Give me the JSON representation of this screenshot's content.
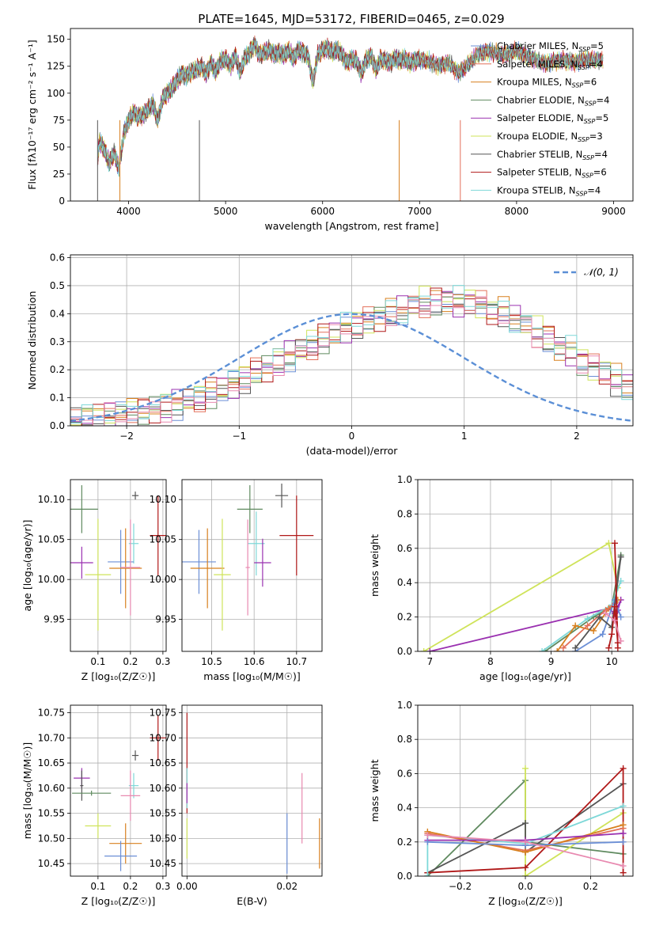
{
  "page": {
    "title": "PLATE=1645, MJD=53172, FIBERID=0465, z=0.029"
  },
  "colors": {
    "chabrier_miles": "#6b8fd6",
    "salpeter_miles": "#e3705a",
    "kroupa_miles": "#d8801f",
    "chabrier_elodie": "#5f8a5f",
    "salpeter_elodie": "#9a30b0",
    "kroupa_elodie": "#cfe35a",
    "chabrier_stelib": "#555555",
    "salpeter_stelib": "#b01818",
    "kroupa_stelib": "#7ed8d8",
    "pink": "#e889b0",
    "normal": "#5b8fd6",
    "grid": "#b0b0b0"
  },
  "chart_data": [
    {
      "id": "spectrum",
      "type": "line",
      "title": "PLATE=1645, MJD=53172, FIBERID=0465, z=0.029",
      "xlabel": "wavelength [Angstrom, rest frame]",
      "ylabel": "Flux [fλ10⁻¹⁷ erg cm⁻² s⁻¹ A⁻¹]",
      "xlim": [
        3400,
        9200
      ],
      "ylim": [
        0,
        160
      ],
      "xticks": [
        4000,
        5000,
        6000,
        7000,
        8000,
        9000
      ],
      "yticks": [
        0,
        25,
        50,
        75,
        100,
        125,
        150
      ],
      "grid": false,
      "legend_position": "top-right",
      "legend": [
        {
          "label": "Chabrier MILES, N",
          "sub": "SSP",
          "tail": "=5",
          "color_key": "chabrier_miles"
        },
        {
          "label": "Salpeter MILES, N",
          "sub": "SSP",
          "tail": "=4",
          "color_key": "salpeter_miles"
        },
        {
          "label": "Kroupa MILES, N",
          "sub": "SSP",
          "tail": "=6",
          "color_key": "kroupa_miles"
        },
        {
          "label": "Chabrier ELODIE, N",
          "sub": "SSP",
          "tail": "=4",
          "color_key": "chabrier_elodie"
        },
        {
          "label": "Salpeter ELODIE, N",
          "sub": "SSP",
          "tail": "=5",
          "color_key": "salpeter_elodie"
        },
        {
          "label": "Kroupa ELODIE, N",
          "sub": "SSP",
          "tail": "=3",
          "color_key": "kroupa_elodie"
        },
        {
          "label": "Chabrier STELIB, N",
          "sub": "SSP",
          "tail": "=4",
          "color_key": "chabrier_stelib"
        },
        {
          "label": "Salpeter STELIB, N",
          "sub": "SSP",
          "tail": "=6",
          "color_key": "salpeter_stelib"
        },
        {
          "label": "Kroupa STELIB, N",
          "sub": "SSP",
          "tail": "=4",
          "color_key": "kroupa_stelib"
        }
      ],
      "x": [
        3680,
        3700,
        3750,
        3800,
        3850,
        3900,
        3950,
        4000,
        4050,
        4100,
        4150,
        4200,
        4250,
        4300,
        4350,
        4400,
        4450,
        4500,
        4550,
        4600,
        4650,
        4700,
        4750,
        4800,
        4850,
        4900,
        4950,
        5000,
        5050,
        5100,
        5150,
        5200,
        5250,
        5300,
        5350,
        5400,
        5450,
        5500,
        5550,
        5600,
        5650,
        5700,
        5750,
        5800,
        5850,
        5900,
        5950,
        6000,
        6050,
        6100,
        6150,
        6200,
        6250,
        6300,
        6350,
        6400,
        6450,
        6500,
        6550,
        6600,
        6650,
        6700,
        6750,
        6800,
        6850,
        6900,
        6950,
        7000,
        7100,
        7200,
        7300,
        7400,
        7500,
        7600,
        7700,
        7800,
        7900,
        8000,
        8100,
        8200,
        8300,
        8400,
        8500,
        8600,
        8700,
        8800,
        8900
      ],
      "flux": [
        40,
        55,
        48,
        35,
        45,
        30,
        62,
        75,
        82,
        78,
        80,
        85,
        90,
        75,
        95,
        100,
        105,
        112,
        118,
        116,
        120,
        122,
        125,
        118,
        128,
        120,
        130,
        132,
        125,
        135,
        120,
        133,
        138,
        145,
        135,
        138,
        140,
        136,
        138,
        135,
        140,
        132,
        140,
        138,
        134,
        110,
        136,
        140,
        142,
        138,
        140,
        136,
        128,
        132,
        130,
        118,
        132,
        134,
        122,
        132,
        130,
        128,
        133,
        130,
        132,
        128,
        130,
        132,
        130,
        125,
        128,
        118,
        126,
        135,
        138,
        137,
        136,
        140,
        135,
        132,
        128,
        130,
        130,
        128,
        131,
        130,
        130
      ],
      "dropouts": [
        {
          "x": 3680,
          "color_key": "chabrier_stelib"
        },
        {
          "x": 3910,
          "color_key": "kroupa_miles"
        },
        {
          "x": 4730,
          "color_key": "chabrier_stelib"
        },
        {
          "x": 6790,
          "color_key": "kroupa_miles"
        },
        {
          "x": 7420,
          "color_key": "salpeter_miles"
        }
      ]
    },
    {
      "id": "residuals",
      "type": "line",
      "xlabel": "(data-model)/error",
      "ylabel": "Normed distribution",
      "xlim": [
        -2.5,
        2.5
      ],
      "ylim": [
        0,
        0.61
      ],
      "xticks": [
        -2,
        -1,
        0,
        1,
        2
      ],
      "yticks": [
        0.0,
        0.1,
        0.2,
        0.3,
        0.4,
        0.5,
        0.6
      ],
      "grid": true,
      "legend_position": "top-right",
      "legend_label": "𝒩(0, 1)",
      "bin_width": 0.1,
      "series_base": [
        0.02,
        0.03,
        0.03,
        0.04,
        0.04,
        0.05,
        0.05,
        0.06,
        0.07,
        0.08,
        0.09,
        0.1,
        0.12,
        0.13,
        0.15,
        0.17,
        0.19,
        0.21,
        0.23,
        0.25,
        0.27,
        0.29,
        0.31,
        0.33,
        0.35,
        0.36,
        0.37,
        0.39,
        0.4,
        0.41,
        0.43,
        0.44,
        0.44,
        0.45,
        0.44,
        0.44,
        0.43,
        0.41,
        0.4,
        0.38,
        0.36,
        0.33,
        0.31,
        0.28,
        0.26,
        0.23,
        0.21,
        0.19,
        0.16,
        0.14,
        0.12
      ]
    },
    {
      "id": "age_vs_Z",
      "type": "scatter",
      "xlabel": "Z [log₁₀(Z/Z☉)]",
      "ylabel": "age  [log₁₀(age/yr)]",
      "xlim": [
        0.015,
        0.31
      ],
      "ylim": [
        9.91,
        10.125
      ],
      "xticks": [
        0.1,
        0.2,
        0.3
      ],
      "yticks": [
        9.95,
        10.0,
        10.05,
        10.1
      ],
      "grid": true,
      "points": [
        {
          "x": 0.05,
          "y": 10.088,
          "xerr": 0.05,
          "yerr": 0.03,
          "color_key": "chabrier_elodie"
        },
        {
          "x": 0.215,
          "y": 10.105,
          "xerr": 0.01,
          "yerr": 0.005,
          "color_key": "chabrier_stelib"
        },
        {
          "x": 0.285,
          "y": 10.055,
          "xerr": 0.025,
          "yerr": 0.05,
          "color_key": "salpeter_stelib"
        },
        {
          "x": 0.21,
          "y": 10.045,
          "xerr": 0.015,
          "yerr": 0.025,
          "color_key": "kroupa_stelib"
        },
        {
          "x": 0.05,
          "y": 10.021,
          "xerr": 0.035,
          "yerr": 0.02,
          "color_key": "salpeter_elodie"
        },
        {
          "x": 0.17,
          "y": 10.022,
          "xerr": 0.04,
          "yerr": 0.04,
          "color_key": "chabrier_miles"
        },
        {
          "x": 0.185,
          "y": 10.014,
          "xerr": 0.05,
          "yerr": 0.05,
          "color_key": "kroupa_miles"
        },
        {
          "x": 0.2,
          "y": 10.015,
          "xerr": 0.03,
          "yerr": 0.06,
          "color_key": "pink"
        },
        {
          "x": 0.1,
          "y": 10.006,
          "xerr": 0.04,
          "yerr": 0.07,
          "color_key": "kroupa_elodie"
        }
      ]
    },
    {
      "id": "age_vs_mass",
      "type": "scatter",
      "xlabel": "mass [log₁₀(M/M☉)]",
      "ylabel": "",
      "xlim": [
        10.43,
        10.76
      ],
      "ylim": [
        9.91,
        10.125
      ],
      "xticks": [
        10.5,
        10.6,
        10.7
      ],
      "yticks": [
        9.95,
        10.0,
        10.05,
        10.1
      ],
      "grid": true,
      "points": [
        {
          "x": 10.59,
          "y": 10.088,
          "xerr": 0.03,
          "yerr": 0.03,
          "color_key": "chabrier_elodie"
        },
        {
          "x": 10.665,
          "y": 10.105,
          "xerr": 0.015,
          "yerr": 0.015,
          "color_key": "chabrier_stelib"
        },
        {
          "x": 10.7,
          "y": 10.055,
          "xerr": 0.04,
          "yerr": 0.05,
          "color_key": "salpeter_stelib"
        },
        {
          "x": 10.605,
          "y": 10.045,
          "xerr": 0.02,
          "yerr": 0.04,
          "color_key": "kroupa_stelib"
        },
        {
          "x": 10.62,
          "y": 10.021,
          "xerr": 0.02,
          "yerr": 0.03,
          "color_key": "salpeter_elodie"
        },
        {
          "x": 10.47,
          "y": 10.022,
          "xerr": 0.04,
          "yerr": 0.04,
          "color_key": "chabrier_miles"
        },
        {
          "x": 10.49,
          "y": 10.014,
          "xerr": 0.04,
          "yerr": 0.05,
          "color_key": "kroupa_miles"
        },
        {
          "x": 10.585,
          "y": 10.015,
          "xerr": 0.005,
          "yerr": 0.06,
          "color_key": "pink"
        },
        {
          "x": 10.525,
          "y": 10.006,
          "xerr": 0.02,
          "yerr": 0.07,
          "color_key": "kroupa_elodie"
        }
      ]
    },
    {
      "id": "weight_vs_age",
      "type": "line",
      "xlabel": "age  [log₁₀(age/yr)]",
      "ylabel": "mass weight",
      "xlim": [
        6.8,
        10.35
      ],
      "ylim": [
        0,
        1.0
      ],
      "xticks": [
        7,
        8,
        9,
        10
      ],
      "yticks": [
        0.0,
        0.2,
        0.4,
        0.6,
        0.8,
        1.0
      ],
      "grid": true,
      "series": [
        {
          "color_key": "kroupa_elodie",
          "x": [
            6.9,
            9.95,
            10.1
          ],
          "y": [
            0.0,
            0.63,
            0.37
          ]
        },
        {
          "color_key": "salpeter_elodie",
          "x": [
            7.0,
            9.95,
            10.05,
            10.15,
            10.1
          ],
          "y": [
            0.0,
            0.25,
            0.22,
            0.3,
            0.24
          ]
        },
        {
          "color_key": "chabrier_elodie",
          "x": [
            8.9,
            9.7,
            10.0,
            10.15
          ],
          "y": [
            0.0,
            0.2,
            0.26,
            0.56
          ]
        },
        {
          "color_key": "kroupa_stelib",
          "x": [
            8.85,
            9.6,
            10.0,
            10.15
          ],
          "y": [
            0.0,
            0.19,
            0.27,
            0.41
          ]
        },
        {
          "color_key": "kroupa_miles",
          "x": [
            9.1,
            9.4,
            9.7,
            9.95,
            10.1
          ],
          "y": [
            0.0,
            0.15,
            0.12,
            0.25,
            0.3
          ]
        },
        {
          "color_key": "salpeter_miles",
          "x": [
            9.2,
            9.6,
            9.9,
            10.05
          ],
          "y": [
            0.02,
            0.15,
            0.24,
            0.28
          ]
        },
        {
          "color_key": "chabrier_miles",
          "x": [
            9.4,
            9.85,
            10.05,
            10.15
          ],
          "y": [
            0.0,
            0.1,
            0.3,
            0.2
          ]
        },
        {
          "color_key": "chabrier_stelib",
          "x": [
            9.4,
            9.8,
            10.0,
            10.15
          ],
          "y": [
            0.02,
            0.2,
            0.14,
            0.55
          ]
        },
        {
          "color_key": "salpeter_stelib",
          "x": [
            9.95,
            10.0,
            10.05,
            10.1,
            10.05,
            10.1
          ],
          "y": [
            0.02,
            0.1,
            0.26,
            0.05,
            0.63,
            0.02
          ]
        },
        {
          "color_key": "pink",
          "x": [
            9.9,
            10.05,
            10.15
          ],
          "y": [
            0.22,
            0.18,
            0.06
          ]
        }
      ]
    },
    {
      "id": "mass_vs_Z",
      "type": "scatter",
      "xlabel": "Z [log₁₀(Z/Z☉)]",
      "ylabel": "mass [log₁₀(M/M☉)]",
      "xlim": [
        0.015,
        0.31
      ],
      "ylim": [
        10.425,
        10.765
      ],
      "xticks": [
        0.1,
        0.2,
        0.3
      ],
      "yticks": [
        10.45,
        10.5,
        10.55,
        10.6,
        10.65,
        10.7,
        10.75
      ],
      "grid": true,
      "points": [
        {
          "x": 0.285,
          "y": 10.7,
          "xerr": 0.025,
          "yerr": 0.045,
          "color_key": "salpeter_stelib"
        },
        {
          "x": 0.215,
          "y": 10.665,
          "xerr": 0.01,
          "yerr": 0.01,
          "color_key": "chabrier_stelib"
        },
        {
          "x": 0.05,
          "y": 10.62,
          "xerr": 0.025,
          "yerr": 0.02,
          "color_key": "salpeter_elodie"
        },
        {
          "x": 0.05,
          "y": 10.605,
          "xerr": 0.005,
          "yerr": 0.03,
          "color_key": "chabrier_stelib"
        },
        {
          "x": 0.21,
          "y": 10.605,
          "xerr": 0.015,
          "yerr": 0.025,
          "color_key": "kroupa_stelib"
        },
        {
          "x": 0.08,
          "y": 10.59,
          "xerr": 0.06,
          "yerr": 0.005,
          "color_key": "chabrier_elodie"
        },
        {
          "x": 0.2,
          "y": 10.585,
          "xerr": 0.03,
          "yerr": 0.05,
          "color_key": "pink"
        },
        {
          "x": 0.1,
          "y": 10.525,
          "xerr": 0.04,
          "yerr": 0.025,
          "color_key": "kroupa_elodie"
        },
        {
          "x": 0.185,
          "y": 10.49,
          "xerr": 0.05,
          "yerr": 0.04,
          "color_key": "kroupa_miles"
        },
        {
          "x": 0.17,
          "y": 10.465,
          "xerr": 0.05,
          "yerr": 0.03,
          "color_key": "chabrier_miles"
        }
      ]
    },
    {
      "id": "mass_vs_ebv",
      "type": "scatter",
      "xlabel": "E(B-V)",
      "ylabel": "",
      "xlim": [
        -0.001,
        0.027
      ],
      "ylim": [
        10.425,
        10.765
      ],
      "xticks": [
        0.0,
        0.02
      ],
      "yticks": [
        10.45,
        10.5,
        10.55,
        10.6,
        10.65,
        10.7,
        10.75
      ],
      "grid": true,
      "points": [
        {
          "x": 0.0,
          "y": 10.65,
          "xerr": 0,
          "yerr": 0.1,
          "color_key": "salpeter_stelib"
        },
        {
          "x": 0.0,
          "y": 10.6,
          "xerr": 0,
          "yerr": 0.04,
          "color_key": "kroupa_stelib"
        },
        {
          "x": 0.0,
          "y": 10.5,
          "xerr": 0,
          "yerr": 0.04,
          "color_key": "kroupa_elodie"
        },
        {
          "x": 0.0,
          "y": 10.59,
          "xerr": 0,
          "yerr": 0.02,
          "color_key": "salpeter_elodie"
        },
        {
          "x": 0.02,
          "y": 10.49,
          "xerr": 0,
          "yerr": 0.06,
          "color_key": "chabrier_miles"
        },
        {
          "x": 0.023,
          "y": 10.56,
          "xerr": 0,
          "yerr": 0.07,
          "color_key": "pink"
        },
        {
          "x": 0.0265,
          "y": 10.49,
          "xerr": 0,
          "yerr": 0.05,
          "color_key": "kroupa_miles"
        }
      ]
    },
    {
      "id": "weight_vs_Z",
      "type": "line",
      "xlabel": "Z [log₁₀(Z/Z☉)]",
      "ylabel": "mass weight",
      "xlim": [
        -0.33,
        0.33
      ],
      "ylim": [
        0,
        1.0
      ],
      "xticks": [
        -0.2,
        0.0,
        0.2
      ],
      "yticks": [
        0.0,
        0.2,
        0.4,
        0.6,
        0.8,
        1.0
      ],
      "grid": true,
      "series": [
        {
          "color_key": "chabrier_elodie",
          "x": [
            -0.3,
            0.0,
            0.0,
            0.3
          ],
          "y": [
            0.0,
            0.56,
            0.2,
            0.13
          ]
        },
        {
          "color_key": "kroupa_elodie",
          "x": [
            0.0,
            0.0,
            0.0,
            0.3
          ],
          "y": [
            0.63,
            0.0,
            0.0,
            0.37
          ]
        },
        {
          "color_key": "chabrier_stelib",
          "x": [
            -0.3,
            0.0,
            0.0,
            0.3
          ],
          "y": [
            0.02,
            0.31,
            0.14,
            0.54
          ]
        },
        {
          "color_key": "salpeter_stelib",
          "x": [
            -0.3,
            0.0,
            0.3,
            0.3
          ],
          "y": [
            0.02,
            0.05,
            0.63,
            0.02
          ]
        },
        {
          "color_key": "kroupa_stelib",
          "x": [
            -0.3,
            -0.3,
            0.0,
            0.3
          ],
          "y": [
            0.0,
            0.24,
            0.19,
            0.41
          ]
        },
        {
          "color_key": "salpeter_miles",
          "x": [
            -0.3,
            0.0,
            0.3
          ],
          "y": [
            0.25,
            0.15,
            0.28
          ]
        },
        {
          "color_key": "kroupa_miles",
          "x": [
            -0.3,
            0.0,
            0.3
          ],
          "y": [
            0.26,
            0.14,
            0.3
          ]
        },
        {
          "color_key": "salpeter_elodie",
          "x": [
            -0.3,
            0.0,
            0.3
          ],
          "y": [
            0.21,
            0.21,
            0.25
          ]
        },
        {
          "color_key": "chabrier_miles",
          "x": [
            -0.3,
            0.0,
            0.3
          ],
          "y": [
            0.2,
            0.18,
            0.2
          ]
        },
        {
          "color_key": "pink",
          "x": [
            -0.3,
            0.0,
            0.3
          ],
          "y": [
            0.24,
            0.2,
            0.06
          ]
        }
      ]
    }
  ]
}
